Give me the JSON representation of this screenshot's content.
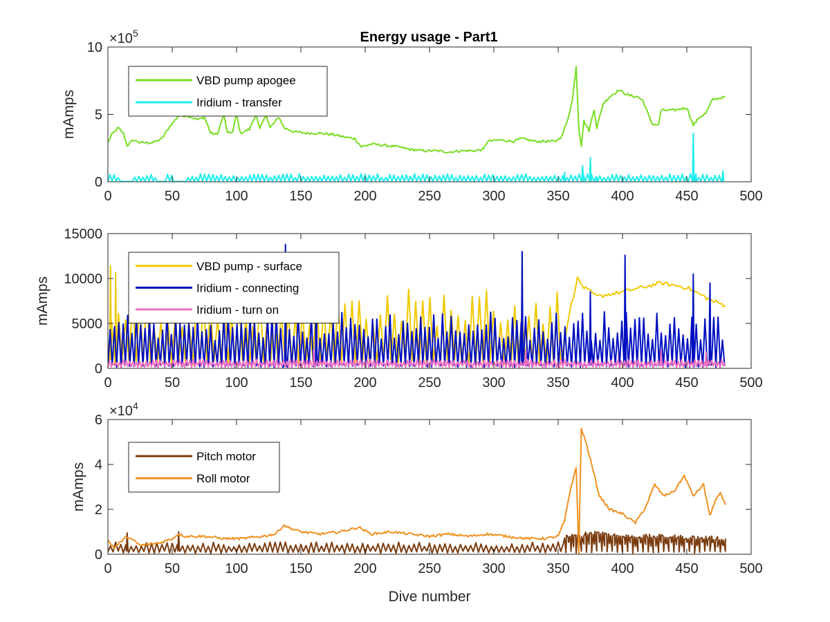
{
  "chart_data": [
    {
      "type": "line",
      "title": "Energy usage - Part1",
      "xlabel": "",
      "ylabel": "mAmps",
      "xlim": [
        0,
        500
      ],
      "ylim": [
        0,
        10
      ],
      "xticks": [
        0,
        50,
        100,
        150,
        200,
        250,
        300,
        350,
        400,
        450,
        500
      ],
      "yticks": [
        0,
        5,
        10
      ],
      "multiplier": {
        "base": "×10",
        "exponent": "5"
      },
      "grid": false,
      "legend_position": "top-left",
      "series": [
        {
          "name": "VBD pump apogee",
          "color": "#77dd22",
          "style": "smooth",
          "points": [
            [
              0,
              2.9
            ],
            [
              3,
              3.5
            ],
            [
              8,
              4.0
            ],
            [
              12,
              3.6
            ],
            [
              15,
              2.7
            ],
            [
              20,
              3.1
            ],
            [
              25,
              2.9
            ],
            [
              35,
              2.9
            ],
            [
              42,
              3.2
            ],
            [
              48,
              4.1
            ],
            [
              55,
              4.9
            ],
            [
              62,
              4.9
            ],
            [
              70,
              4.6
            ],
            [
              75,
              4.8
            ],
            [
              80,
              3.6
            ],
            [
              85,
              3.5
            ],
            [
              90,
              5.0
            ],
            [
              93,
              3.6
            ],
            [
              97,
              3.7
            ],
            [
              100,
              5.0
            ],
            [
              103,
              3.6
            ],
            [
              110,
              3.9
            ],
            [
              115,
              5.0
            ],
            [
              118,
              3.9
            ],
            [
              123,
              5.0
            ],
            [
              126,
              4.0
            ],
            [
              133,
              4.8
            ],
            [
              137,
              4.0
            ],
            [
              145,
              3.7
            ],
            [
              155,
              3.6
            ],
            [
              165,
              3.6
            ],
            [
              175,
              3.5
            ],
            [
              185,
              3.3
            ],
            [
              192,
              3.2
            ],
            [
              197,
              2.6
            ],
            [
              205,
              2.8
            ],
            [
              215,
              2.7
            ],
            [
              225,
              2.6
            ],
            [
              235,
              2.4
            ],
            [
              245,
              2.3
            ],
            [
              255,
              2.3
            ],
            [
              265,
              2.2
            ],
            [
              275,
              2.3
            ],
            [
              285,
              2.3
            ],
            [
              292,
              2.4
            ],
            [
              295,
              3.0
            ],
            [
              305,
              3.1
            ],
            [
              315,
              3.0
            ],
            [
              322,
              3.2
            ],
            [
              332,
              3.0
            ],
            [
              340,
              3.0
            ],
            [
              348,
              3.0
            ],
            [
              353,
              3.4
            ],
            [
              357,
              4.5
            ],
            [
              361,
              6.0
            ],
            [
              364,
              8.6
            ],
            [
              366,
              4.0
            ],
            [
              368,
              2.7
            ],
            [
              370,
              4.5
            ],
            [
              374,
              3.8
            ],
            [
              378,
              5.4
            ],
            [
              380,
              4.0
            ],
            [
              385,
              5.8
            ],
            [
              390,
              6.3
            ],
            [
              397,
              6.8
            ],
            [
              405,
              6.4
            ],
            [
              412,
              6.3
            ],
            [
              416,
              6.0
            ],
            [
              420,
              5.0
            ],
            [
              423,
              4.3
            ],
            [
              428,
              4.2
            ],
            [
              430,
              5.3
            ],
            [
              440,
              5.3
            ],
            [
              450,
              5.5
            ],
            [
              455,
              4.2
            ],
            [
              460,
              4.8
            ],
            [
              465,
              5.1
            ],
            [
              470,
              6.1
            ],
            [
              475,
              6.2
            ],
            [
              480,
              6.3
            ]
          ]
        },
        {
          "name": "Iridium - transfer",
          "color": "#20eeee",
          "style": "spiky",
          "base": 0.05,
          "amp": 0.55,
          "period": 3.2,
          "x_range": [
            0,
            480
          ],
          "gaps": [
            [
              10,
              20
            ],
            [
              37,
              45
            ],
            [
              50,
              62
            ]
          ],
          "peaks": [
            [
              355,
              0.7
            ],
            [
              369,
              1.2
            ],
            [
              375,
              1.8
            ],
            [
              380,
              0.4
            ],
            [
              455,
              3.6
            ],
            [
              457,
              0.6
            ],
            [
              478,
              0.8
            ]
          ]
        }
      ]
    },
    {
      "type": "line",
      "title": "",
      "xlabel": "",
      "ylabel": "mAmps",
      "xlim": [
        0,
        500
      ],
      "ylim": [
        0,
        15000
      ],
      "xticks": [
        0,
        50,
        100,
        150,
        200,
        250,
        300,
        350,
        400,
        450,
        500
      ],
      "yticks": [
        0,
        5000,
        10000,
        15000
      ],
      "grid": false,
      "legend_position": "top-left",
      "series": [
        {
          "name": "VBD pump - surface",
          "color": "#f0c800",
          "style": "spiky",
          "base": 1000,
          "amp": 8000,
          "period": 5.5,
          "x_range": [
            0,
            352
          ],
          "extra": [
            [
              360,
              7000
            ],
            [
              365,
              10000
            ],
            [
              370,
              9000
            ],
            [
              380,
              8000
            ],
            [
              400,
              8500
            ],
            [
              430,
              9500
            ],
            [
              450,
              9000
            ],
            [
              470,
              7500
            ],
            [
              480,
              7000
            ]
          ],
          "peaks": [
            [
              2,
              11400
            ],
            [
              6,
              10700
            ]
          ]
        },
        {
          "name": "Iridium - connecting",
          "color": "#0010c0",
          "style": "spiky",
          "base": 400,
          "amp": 6000,
          "period": 3.4,
          "x_range": [
            0,
            480
          ],
          "peaks": [
            [
              138,
              13800
            ],
            [
              162,
              11000
            ],
            [
              322,
              13000
            ],
            [
              402,
              12600
            ],
            [
              375,
              8500
            ],
            [
              455,
              10500
            ],
            [
              468,
              9500
            ]
          ]
        },
        {
          "name": "Iridium - turn on",
          "color": "#f070c0",
          "style": "spiky",
          "base": 300,
          "amp": 700,
          "period": 2.6,
          "x_range": [
            0,
            480
          ],
          "peaks": [
            [
              160,
              2100
            ],
            [
              325,
              2000
            ],
            [
              430,
              2000
            ],
            [
              465,
              1800
            ]
          ]
        }
      ]
    },
    {
      "type": "line",
      "title": "",
      "xlabel": "Dive number",
      "ylabel": "mAmps",
      "xlim": [
        0,
        500
      ],
      "ylim": [
        0,
        6
      ],
      "xticks": [
        0,
        50,
        100,
        150,
        200,
        250,
        300,
        350,
        400,
        450,
        500
      ],
      "yticks": [
        0,
        2,
        4,
        6
      ],
      "multiplier": {
        "base": "×10",
        "exponent": "4"
      },
      "grid": false,
      "legend_position": "top-left",
      "series": [
        {
          "name": "Pitch motor",
          "color": "#7a3c10",
          "style": "spiky",
          "base": 0.15,
          "amp": 0.4,
          "period": 4,
          "x_range": [
            0,
            480
          ],
          "extra": [
            [
              355,
              0.8
            ],
            [
              365,
              0.8
            ],
            [
              370,
              0.9
            ],
            [
              380,
              1.0
            ],
            [
              400,
              0.8
            ],
            [
              430,
              0.8
            ],
            [
              480,
              0.7
            ]
          ],
          "peaks": [
            [
              15,
              0.95
            ],
            [
              55,
              1.0
            ]
          ]
        },
        {
          "name": "Roll motor",
          "color": "#f0901e",
          "style": "smooth",
          "points": [
            [
              0,
              0.6
            ],
            [
              5,
              0.3
            ],
            [
              15,
              0.8
            ],
            [
              25,
              0.4
            ],
            [
              40,
              0.5
            ],
            [
              50,
              0.7
            ],
            [
              55,
              0.9
            ],
            [
              60,
              0.8
            ],
            [
              75,
              0.8
            ],
            [
              90,
              0.7
            ],
            [
              105,
              0.7
            ],
            [
              120,
              0.8
            ],
            [
              130,
              0.9
            ],
            [
              137,
              1.3
            ],
            [
              140,
              1.2
            ],
            [
              150,
              1.0
            ],
            [
              165,
              0.9
            ],
            [
              180,
              1.0
            ],
            [
              195,
              1.2
            ],
            [
              205,
              0.9
            ],
            [
              220,
              1.0
            ],
            [
              235,
              0.9
            ],
            [
              250,
              0.8
            ],
            [
              265,
              0.9
            ],
            [
              280,
              0.8
            ],
            [
              295,
              0.9
            ],
            [
              310,
              0.8
            ],
            [
              325,
              0.7
            ],
            [
              340,
              0.7
            ],
            [
              350,
              0.8
            ],
            [
              355,
              1.5
            ],
            [
              360,
              3.0
            ],
            [
              364,
              3.9
            ],
            [
              366,
              0.0
            ],
            [
              368,
              5.6
            ],
            [
              372,
              4.9
            ],
            [
              376,
              4.0
            ],
            [
              382,
              2.6
            ],
            [
              390,
              2.0
            ],
            [
              400,
              1.8
            ],
            [
              410,
              1.4
            ],
            [
              418,
              2.1
            ],
            [
              425,
              3.1
            ],
            [
              432,
              2.6
            ],
            [
              440,
              2.8
            ],
            [
              448,
              3.5
            ],
            [
              455,
              2.6
            ],
            [
              463,
              3.1
            ],
            [
              468,
              1.7
            ],
            [
              472,
              2.4
            ],
            [
              476,
              2.7
            ],
            [
              480,
              2.2
            ]
          ]
        }
      ]
    }
  ]
}
